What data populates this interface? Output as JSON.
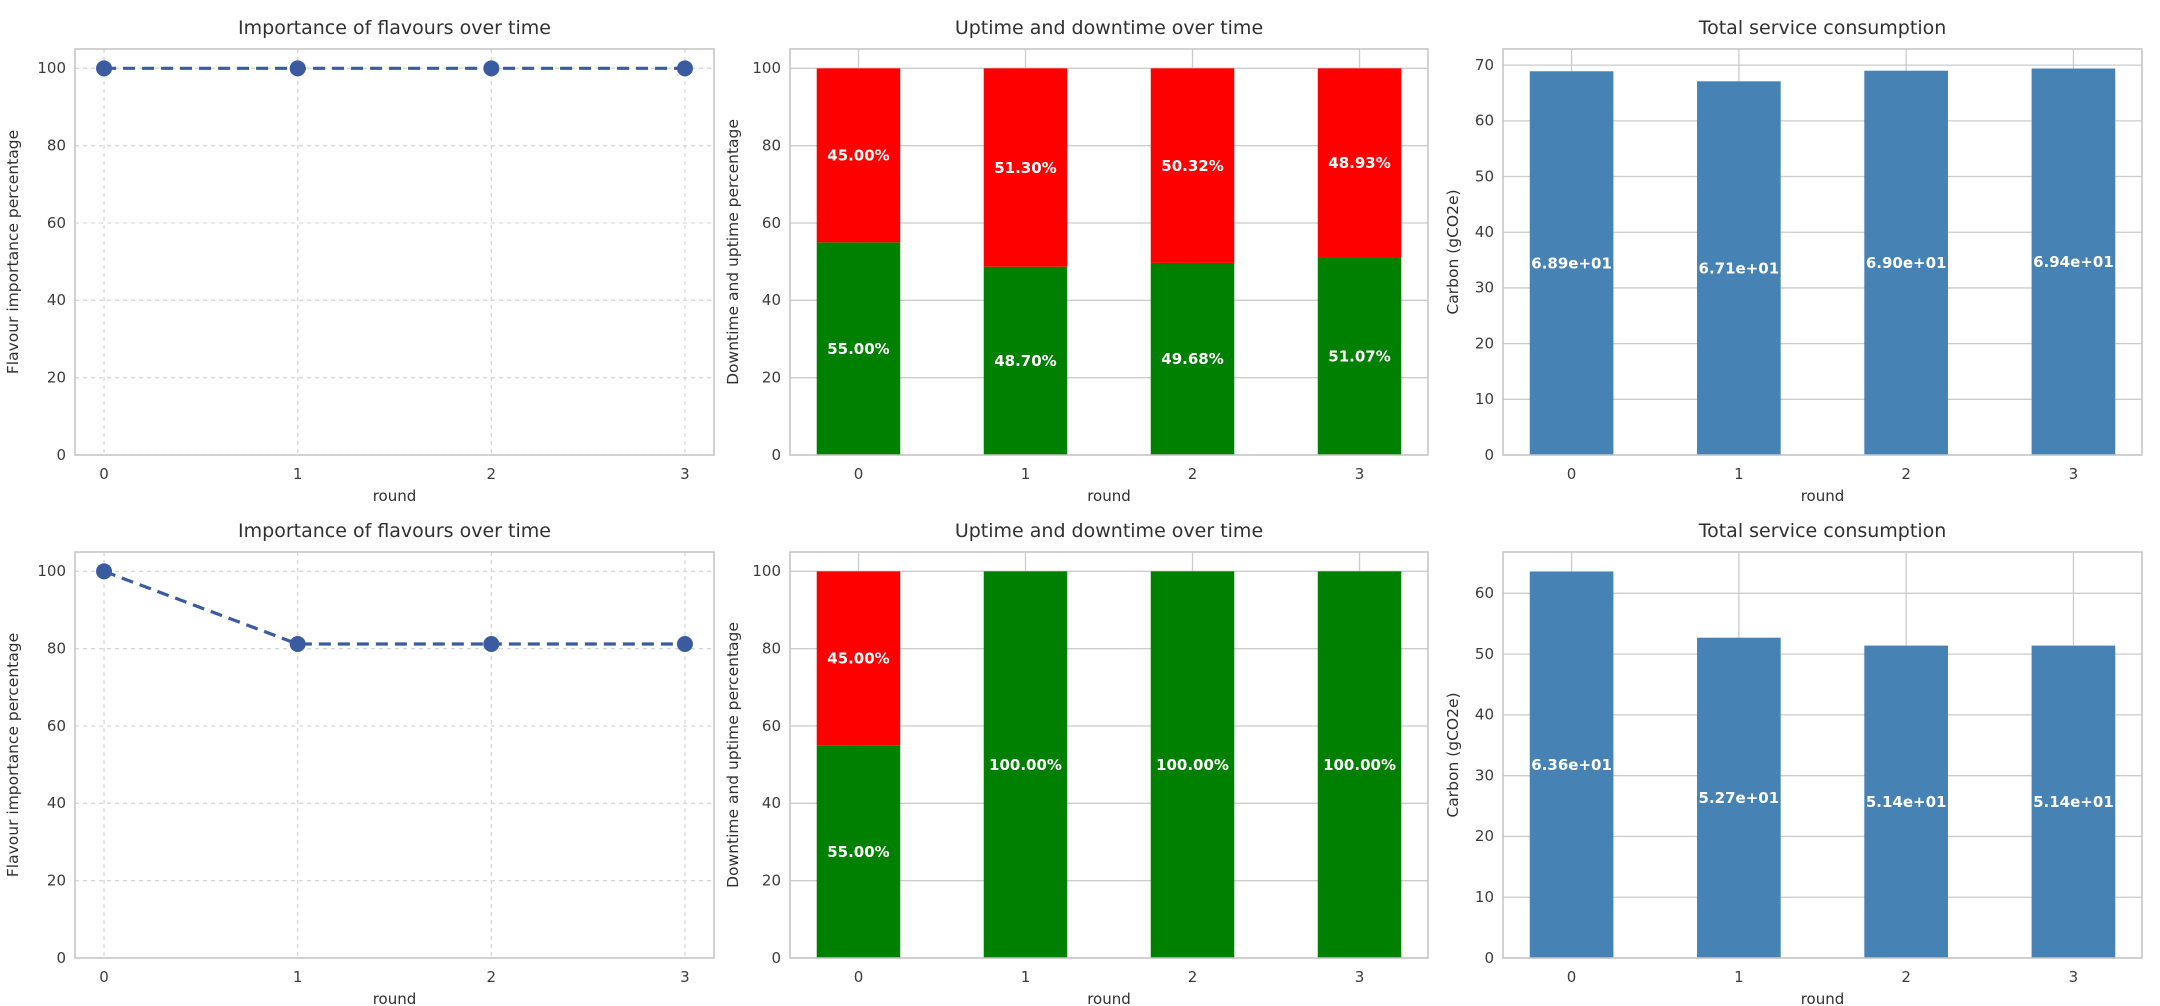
{
  "figure": {
    "background_color": "#ffffff",
    "grid_rows": 2,
    "grid_cols": 3,
    "colors": {
      "line_blue": "#3b5ba0",
      "uptime_green": "#008000",
      "downtime_red": "#ff0000",
      "carbon_steelblue": "#4682b4",
      "grid_gray": "#cccccc",
      "spine_gray": "#c4c4c4",
      "text_dark": "#303030",
      "bar_label_white": "#ffffff"
    }
  },
  "chart_data": [
    {
      "type": "line",
      "title": "Importance of flavours over time",
      "xlabel": "round",
      "ylabel": "Flavour importance percentage",
      "x": [
        0,
        1,
        2,
        3
      ],
      "y": [
        100,
        100,
        100,
        100
      ],
      "xticklabels": [
        "0",
        "1",
        "2",
        "3"
      ],
      "yticks": [
        0,
        20,
        40,
        60,
        80,
        100
      ],
      "ylim": [
        0,
        105
      ],
      "line_color": "#3b5ba0",
      "line_style": "dashed",
      "marker": "circle",
      "grid": "dashed",
      "legend": "none"
    },
    {
      "type": "stacked_bar",
      "title": "Uptime and downtime over time",
      "xlabel": "round",
      "ylabel": "Downtime and uptime percentage",
      "categories": [
        "0",
        "1",
        "2",
        "3"
      ],
      "series": [
        {
          "name": "uptime",
          "color": "#008000",
          "values": [
            55.0,
            48.7,
            49.68,
            51.07
          ],
          "labels": [
            "55.00%",
            "48.70%",
            "49.68%",
            "51.07%"
          ]
        },
        {
          "name": "downtime",
          "color": "#ff0000",
          "values": [
            45.0,
            51.3,
            50.32,
            48.93
          ],
          "labels": [
            "45.00%",
            "51.30%",
            "50.32%",
            "48.93%"
          ]
        }
      ],
      "yticks": [
        0,
        20,
        40,
        60,
        80,
        100
      ],
      "ylim": [
        0,
        105
      ],
      "grid": "solid",
      "label_color": "#ffffff",
      "legend": "none"
    },
    {
      "type": "bar",
      "title": "Total service consumption",
      "xlabel": "round",
      "ylabel": "Carbon (gCO2e)",
      "categories": [
        "0",
        "1",
        "2",
        "3"
      ],
      "values": [
        68.9,
        67.1,
        69.0,
        69.4
      ],
      "labels": [
        "6.89e+01",
        "6.71e+01",
        "6.90e+01",
        "6.94e+01"
      ],
      "bar_color": "#4682b4",
      "yticks": [
        0,
        10,
        20,
        30,
        40,
        50,
        60,
        70
      ],
      "ylim": [
        0,
        72.9
      ],
      "grid": "solid",
      "label_color": "#ffffff",
      "legend": "none"
    },
    {
      "type": "line",
      "title": "Importance of flavours over time",
      "xlabel": "round",
      "ylabel": "Flavour importance percentage",
      "x": [
        0,
        1,
        2,
        3
      ],
      "y": [
        100,
        81.2,
        81.2,
        81.2
      ],
      "xticklabels": [
        "0",
        "1",
        "2",
        "3"
      ],
      "yticks": [
        0,
        20,
        40,
        60,
        80,
        100
      ],
      "ylim": [
        0,
        105
      ],
      "line_color": "#3b5ba0",
      "line_style": "dashed",
      "marker": "circle",
      "grid": "dashed",
      "legend": "none"
    },
    {
      "type": "stacked_bar",
      "title": "Uptime and downtime over time",
      "xlabel": "round",
      "ylabel": "Downtime and uptime percentage",
      "categories": [
        "0",
        "1",
        "2",
        "3"
      ],
      "series": [
        {
          "name": "uptime",
          "color": "#008000",
          "values": [
            55.0,
            100.0,
            100.0,
            100.0
          ],
          "labels": [
            "55.00%",
            "100.00%",
            "100.00%",
            "100.00%"
          ]
        },
        {
          "name": "downtime",
          "color": "#ff0000",
          "values": [
            45.0,
            0,
            0,
            0
          ],
          "labels": [
            "45.00%",
            "",
            "",
            ""
          ]
        }
      ],
      "yticks": [
        0,
        20,
        40,
        60,
        80,
        100
      ],
      "ylim": [
        0,
        105
      ],
      "grid": "solid",
      "label_color": "#ffffff",
      "legend": "none"
    },
    {
      "type": "bar",
      "title": "Total service consumption",
      "xlabel": "round",
      "ylabel": "Carbon (gCO2e)",
      "categories": [
        "0",
        "1",
        "2",
        "3"
      ],
      "values": [
        63.6,
        52.7,
        51.4,
        51.4
      ],
      "labels": [
        "6.36e+01",
        "5.27e+01",
        "5.14e+01",
        "5.14e+01"
      ],
      "bar_color": "#4682b4",
      "yticks": [
        0,
        10,
        20,
        30,
        40,
        50,
        60
      ],
      "ylim": [
        0,
        66.8
      ],
      "grid": "solid",
      "label_color": "#ffffff",
      "legend": "none"
    }
  ]
}
